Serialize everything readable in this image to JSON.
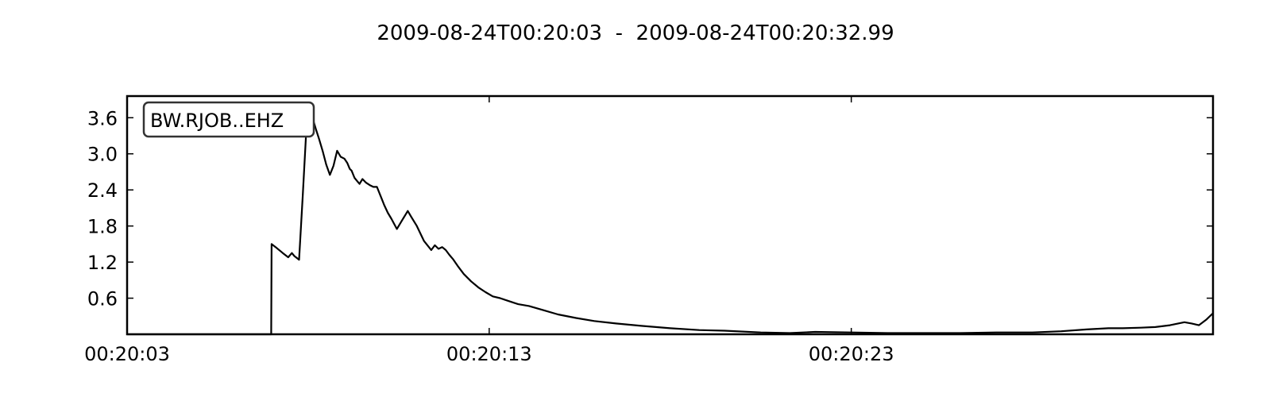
{
  "chart_data": {
    "type": "line",
    "title": "2009-08-24T00:20:03  -  2009-08-24T00:20:32.99",
    "trace_label": "BW.RJOB..EHZ",
    "line_color": "#000000",
    "xlabel": "",
    "ylabel": "",
    "grid": false,
    "x_unit": "seconds after 00:20:03",
    "xlim": [
      0,
      29.99
    ],
    "ylim": [
      0,
      3.96
    ],
    "x_ticks": [
      {
        "value": 0,
        "label": "00:20:03"
      },
      {
        "value": 10,
        "label": "00:20:13"
      },
      {
        "value": 20,
        "label": "00:20:23"
      }
    ],
    "y_ticks": [
      {
        "value": 0.6,
        "label": "0.6"
      },
      {
        "value": 1.2,
        "label": "1.2"
      },
      {
        "value": 1.8,
        "label": "1.8"
      },
      {
        "value": 2.4,
        "label": "2.4"
      },
      {
        "value": 3.0,
        "label": "3.0"
      },
      {
        "value": 3.6,
        "label": "3.6"
      }
    ],
    "series": [
      {
        "x": [
          0,
          3.98,
          3.99,
          4.1,
          4.3,
          4.45,
          4.55,
          4.62,
          4.75,
          4.85,
          4.95,
          5.0,
          5.05,
          5.08,
          5.12,
          5.18,
          5.22,
          5.3,
          5.4,
          5.5,
          5.6,
          5.7,
          5.8,
          5.9,
          6.0,
          6.08,
          6.15,
          6.2,
          6.28,
          6.35,
          6.42,
          6.5,
          6.6,
          6.7,
          6.8,
          6.9,
          7.0,
          7.1,
          7.2,
          7.3,
          7.45,
          7.6,
          7.75,
          7.85,
          8.0,
          8.2,
          8.4,
          8.5,
          8.6,
          8.7,
          8.8,
          8.9,
          9.0,
          9.15,
          9.3,
          9.5,
          9.7,
          9.9,
          10.1,
          10.3,
          10.5,
          10.8,
          11.1,
          11.5,
          11.9,
          12.4,
          12.9,
          13.5,
          14.2,
          15.0,
          15.8,
          16.5,
          17.5,
          18.3,
          19.0,
          20.0,
          21.0,
          22.0,
          23.0,
          24.0,
          25.0,
          25.8,
          26.5,
          27.1,
          27.5,
          28.0,
          28.4,
          28.8,
          29.2,
          29.4,
          29.6,
          29.8,
          29.99
        ],
        "y": [
          0,
          0,
          1.5,
          1.45,
          1.35,
          1.28,
          1.35,
          1.3,
          1.24,
          2.3,
          3.4,
          3.65,
          3.55,
          3.72,
          3.6,
          3.48,
          3.4,
          3.25,
          3.05,
          2.82,
          2.65,
          2.8,
          3.05,
          2.95,
          2.92,
          2.85,
          2.75,
          2.72,
          2.6,
          2.55,
          2.5,
          2.58,
          2.52,
          2.48,
          2.45,
          2.45,
          2.3,
          2.15,
          2.02,
          1.92,
          1.75,
          1.9,
          2.05,
          1.95,
          1.8,
          1.55,
          1.4,
          1.48,
          1.42,
          1.45,
          1.4,
          1.32,
          1.25,
          1.12,
          1.0,
          0.88,
          0.78,
          0.7,
          0.63,
          0.6,
          0.56,
          0.5,
          0.47,
          0.4,
          0.33,
          0.27,
          0.22,
          0.18,
          0.14,
          0.1,
          0.07,
          0.06,
          0.03,
          0.02,
          0.04,
          0.03,
          0.02,
          0.02,
          0.02,
          0.03,
          0.03,
          0.05,
          0.08,
          0.1,
          0.1,
          0.11,
          0.12,
          0.15,
          0.2,
          0.18,
          0.15,
          0.24,
          0.35
        ]
      }
    ]
  }
}
